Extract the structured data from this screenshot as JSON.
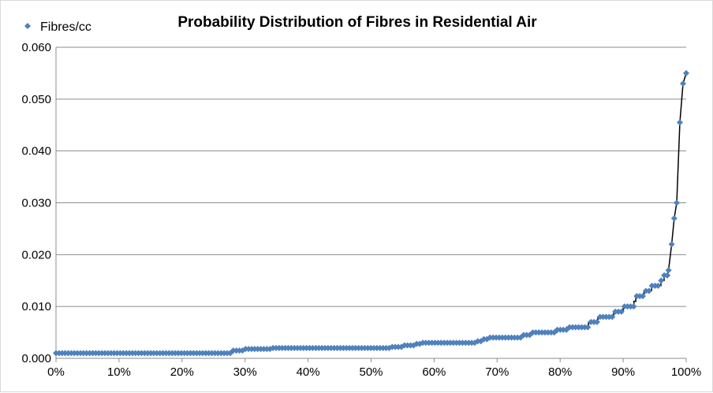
{
  "chart_data": {
    "type": "scatter",
    "title": "Probability Distribution of Fibres in Residential Air",
    "xlabel": "",
    "ylabel": "",
    "xlim": [
      0,
      1
    ],
    "ylim": [
      0,
      0.06
    ],
    "x_ticks": [
      "0%",
      "10%",
      "20%",
      "30%",
      "40%",
      "50%",
      "60%",
      "70%",
      "80%",
      "90%",
      "100%"
    ],
    "y_ticks": [
      "0.000",
      "0.010",
      "0.020",
      "0.030",
      "0.040",
      "0.050",
      "0.060"
    ],
    "grid": "horizontal",
    "legend": "top-left",
    "marker_color": "#4F81BD",
    "line_color": "#000000",
    "series": [
      {
        "name": "Fibres/cc",
        "points": [
          [
            0.0,
            0.001
          ],
          [
            0.28,
            0.001
          ],
          [
            0.28,
            0.0015
          ],
          [
            0.3,
            0.0015
          ],
          [
            0.3,
            0.0018
          ],
          [
            0.34,
            0.0018
          ],
          [
            0.34,
            0.002
          ],
          [
            0.53,
            0.002
          ],
          [
            0.53,
            0.0022
          ],
          [
            0.55,
            0.0022
          ],
          [
            0.55,
            0.0025
          ],
          [
            0.57,
            0.0025
          ],
          [
            0.57,
            0.0028
          ],
          [
            0.58,
            0.0028
          ],
          [
            0.58,
            0.003
          ],
          [
            0.665,
            0.003
          ],
          [
            0.665,
            0.0033
          ],
          [
            0.675,
            0.0033
          ],
          [
            0.675,
            0.0037
          ],
          [
            0.685,
            0.0037
          ],
          [
            0.685,
            0.004
          ],
          [
            0.74,
            0.004
          ],
          [
            0.74,
            0.0045
          ],
          [
            0.755,
            0.0045
          ],
          [
            0.755,
            0.005
          ],
          [
            0.795,
            0.005
          ],
          [
            0.795,
            0.0055
          ],
          [
            0.81,
            0.0055
          ],
          [
            0.81,
            0.006
          ],
          [
            0.845,
            0.006
          ],
          [
            0.845,
            0.007
          ],
          [
            0.86,
            0.007
          ],
          [
            0.86,
            0.008
          ],
          [
            0.885,
            0.008
          ],
          [
            0.885,
            0.009
          ],
          [
            0.9,
            0.009
          ],
          [
            0.9,
            0.01
          ],
          [
            0.917,
            0.01
          ],
          [
            0.917,
            0.011
          ],
          [
            0.92,
            0.011
          ],
          [
            0.92,
            0.012
          ],
          [
            0.933,
            0.012
          ],
          [
            0.933,
            0.013
          ],
          [
            0.945,
            0.013
          ],
          [
            0.945,
            0.014
          ],
          [
            0.96,
            0.014
          ],
          [
            0.96,
            0.015
          ],
          [
            0.965,
            0.015
          ],
          [
            0.965,
            0.016
          ],
          [
            0.97,
            0.016
          ],
          [
            0.972,
            0.017
          ],
          [
            0.977,
            0.022
          ],
          [
            0.981,
            0.027
          ],
          [
            0.985,
            0.03
          ],
          [
            0.99,
            0.0455
          ],
          [
            0.995,
            0.053
          ],
          [
            1.0,
            0.055
          ]
        ]
      }
    ]
  }
}
